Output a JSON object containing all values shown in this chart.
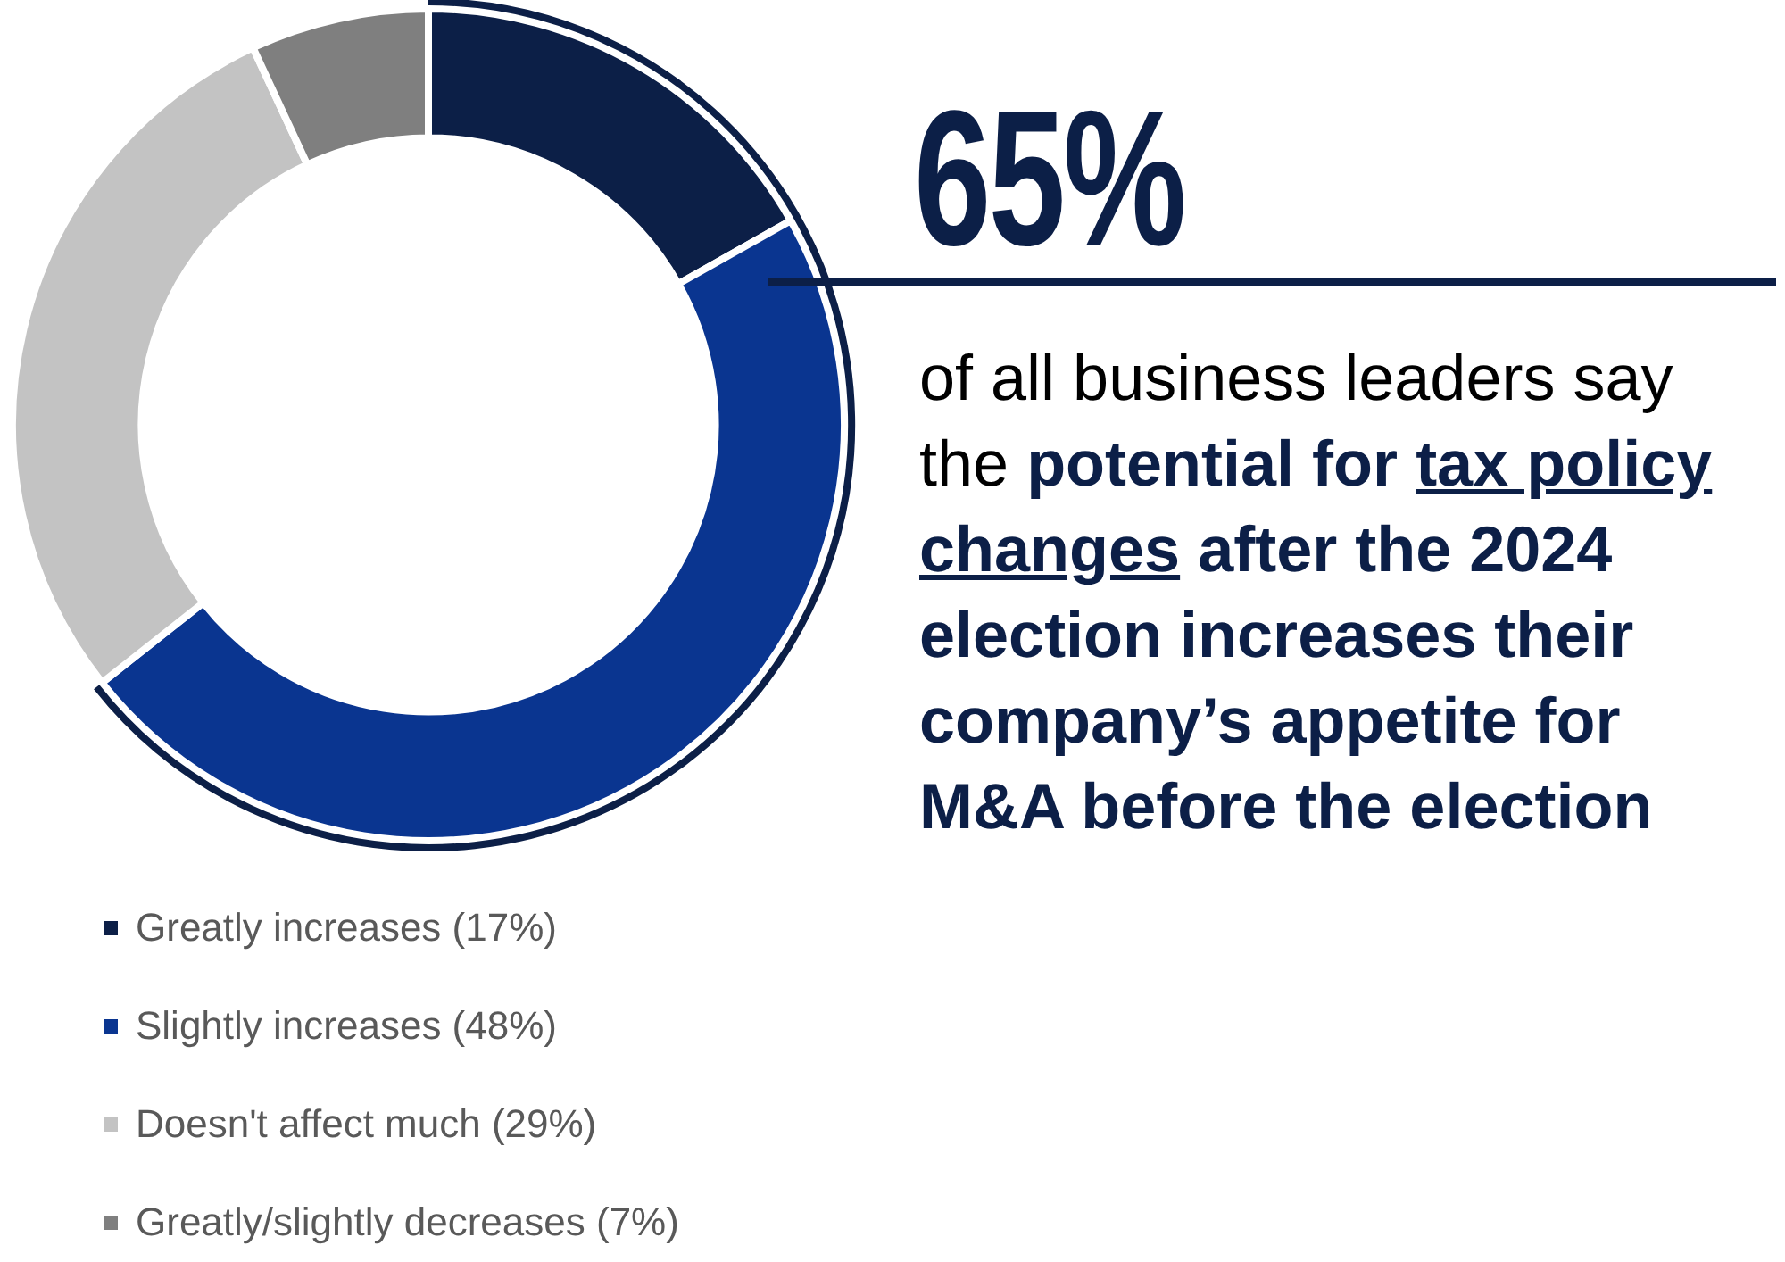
{
  "chart_data": {
    "type": "donut",
    "categories": [
      "Greatly increases (17%)",
      "Slightly increases (48%)",
      "Doesn't affect much (29%)",
      "Greatly/slightly decreases (7%)"
    ],
    "values": [
      17,
      48,
      29,
      7
    ],
    "colors": [
      "#0c1f47",
      "#0a3590",
      "#c3c3c3",
      "#7f7f7f"
    ],
    "legend": "bottom left",
    "annotations": [
      "65%",
      "of all business leaders say the",
      "potential for",
      "tax policy changes",
      "after the 2024 election increases their company’s appetite for M&A before the election"
    ]
  }
}
